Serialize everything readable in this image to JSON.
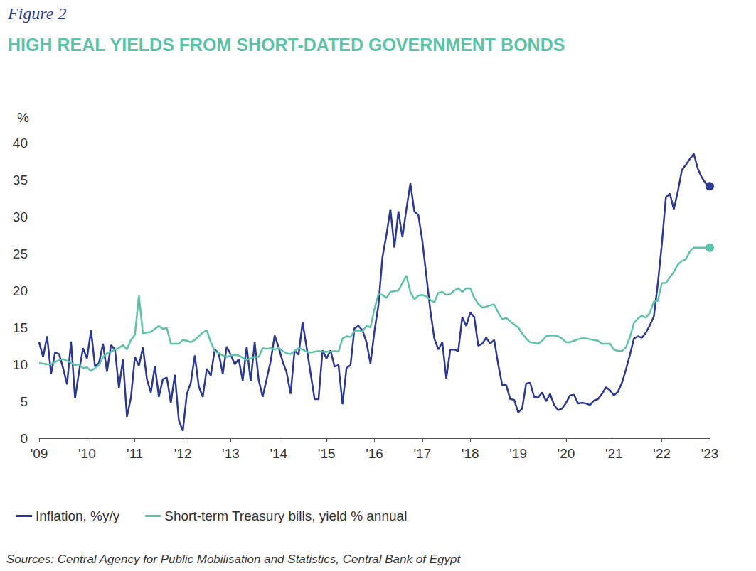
{
  "chart_data": {
    "type": "line",
    "caption": "Figure 2",
    "title": "HIGH REAL YIELDS FROM SHORT-DATED GOVERNMENT BONDS",
    "y_label": "%",
    "source": "Sources: Central Agency for Public Mobilisation and Statistics, Central Bank of Egypt",
    "categories": [
      "'09",
      null,
      null,
      null,
      null,
      null,
      null,
      null,
      null,
      null,
      null,
      null,
      "'10",
      null,
      null,
      null,
      null,
      null,
      null,
      null,
      null,
      null,
      null,
      null,
      "'11",
      null,
      null,
      null,
      null,
      null,
      null,
      null,
      null,
      null,
      null,
      null,
      "'12",
      null,
      null,
      null,
      null,
      null,
      null,
      null,
      null,
      null,
      null,
      null,
      "'13",
      null,
      null,
      null,
      null,
      null,
      null,
      null,
      null,
      null,
      null,
      null,
      "'14",
      null,
      null,
      null,
      null,
      null,
      null,
      null,
      null,
      null,
      null,
      null,
      "'15",
      null,
      null,
      null,
      null,
      null,
      null,
      null,
      null,
      null,
      null,
      null,
      "'16",
      null,
      null,
      null,
      null,
      null,
      null,
      null,
      null,
      null,
      null,
      null,
      "'17",
      null,
      null,
      null,
      null,
      null,
      null,
      null,
      null,
      null,
      null,
      null,
      "'18",
      null,
      null,
      null,
      null,
      null,
      null,
      null,
      null,
      null,
      null,
      null,
      "'19",
      null,
      null,
      null,
      null,
      null,
      null,
      null,
      null,
      null,
      null,
      null,
      "'20",
      null,
      null,
      null,
      null,
      null,
      null,
      null,
      null,
      null,
      null,
      null,
      "'21",
      null,
      null,
      null,
      null,
      null,
      null,
      null,
      null,
      null,
      null,
      null,
      "'22",
      null,
      null,
      null,
      null,
      null,
      null,
      null,
      null,
      null,
      null,
      null,
      "'23"
    ],
    "series": [
      {
        "name": "Inflation, %y/y",
        "color": "#2b3990",
        "values": [
          13.0,
          11.0,
          13.8,
          8.7,
          11.6,
          11.4,
          9.5,
          7.3,
          13.1,
          5.4,
          9.0,
          12.2,
          10.8,
          14.6,
          9.7,
          10.2,
          12.8,
          9.0,
          12.6,
          12.0,
          6.8,
          10.7,
          2.9,
          5.5,
          11.0,
          9.8,
          12.3,
          8.0,
          6.2,
          9.8,
          5.6,
          8.0,
          8.2,
          4.8,
          8.6,
          2.4,
          1.0,
          6.0,
          7.5,
          11.2,
          7.0,
          5.6,
          9.4,
          8.5,
          12.0,
          11.5,
          8.7,
          12.4,
          11.3,
          10.0,
          10.7,
          7.8,
          12.4,
          7.7,
          13.0,
          7.9,
          5.6,
          8.0,
          10.4,
          13.9,
          12.3,
          10.4,
          8.9,
          6.0,
          11.9,
          11.3,
          15.7,
          12.3,
          8.8,
          5.3,
          5.3,
          11.9,
          10.8,
          11.9,
          9.7,
          9.9,
          4.6,
          9.5,
          9.9,
          14.9,
          15.2,
          14.6,
          13.0,
          10.1,
          14.5,
          18.0,
          24.5,
          27.5,
          31.0,
          25.8,
          30.7,
          27.2,
          31.0,
          34.5,
          30.7,
          30.2,
          26.7,
          22.0,
          17.3,
          13.5,
          12.0,
          13.0,
          8.1,
          12.0,
          12.0,
          11.8,
          16.4,
          15.2,
          17.0,
          16.4,
          12.5,
          12.8,
          13.6,
          12.8,
          13.3,
          10.0,
          7.2,
          7.2,
          5.3,
          5.2,
          3.5,
          4.0,
          7.4,
          7.5,
          5.6,
          5.5,
          6.2,
          5.0,
          6.0,
          4.5,
          3.8,
          4.0,
          4.8,
          5.8,
          5.9,
          4.7,
          4.8,
          4.7,
          4.5,
          5.1,
          5.3,
          6.0,
          6.9,
          6.5,
          5.8,
          6.3,
          7.5,
          9.3,
          11.3,
          13.5,
          13.8,
          13.6,
          14.3,
          15.3,
          16.5,
          21.0,
          26.3,
          32.6,
          33.1,
          31.0,
          33.4,
          36.3,
          37.0,
          37.8,
          38.5,
          36.5,
          35.3,
          34.5,
          34.1
        ]
      },
      {
        "name": "Short-term Treasury bills, yield % annual",
        "color": "#5cc3a8",
        "values": [
          10.2,
          10.1,
          10.0,
          10.0,
          10.3,
          10.6,
          10.7,
          10.5,
          10.2,
          9.9,
          10.0,
          9.5,
          9.6,
          9.1,
          9.5,
          9.9,
          11.0,
          11.5,
          11.7,
          12.0,
          12.2,
          12.6,
          12.0,
          13.3,
          14.0,
          19.3,
          14.2,
          14.3,
          14.4,
          14.8,
          15.2,
          14.8,
          14.9,
          12.8,
          12.8,
          12.8,
          13.3,
          13.2,
          13.0,
          13.3,
          13.8,
          14.3,
          14.6,
          13.0,
          11.8,
          11.5,
          11.2,
          11.0,
          11.2,
          11.3,
          11.2,
          10.9,
          10.6,
          10.8,
          11.0,
          11.0,
          12.2,
          12.1,
          12.2,
          12.0,
          12.2,
          11.8,
          11.5,
          11.4,
          11.8,
          12.2,
          12.0,
          11.7,
          11.6,
          11.7,
          11.8,
          11.7,
          11.7,
          11.7,
          11.8,
          11.7,
          13.5,
          13.8,
          13.7,
          14.5,
          14.6,
          14.5,
          15.2,
          15.0,
          17.5,
          19.5,
          19.4,
          19.0,
          19.8,
          19.9,
          20.0,
          21.0,
          22.0,
          19.8,
          18.8,
          19.3,
          19.4,
          19.2,
          18.7,
          18.4,
          19.7,
          19.8,
          19.4,
          19.5,
          20.0,
          20.3,
          19.8,
          20.3,
          20.3,
          19.0,
          18.2,
          17.7,
          17.8,
          18.0,
          18.1,
          17.0,
          16.1,
          16.3,
          15.8,
          15.4,
          15.0,
          14.2,
          13.5,
          13.0,
          12.9,
          12.8,
          13.2,
          13.8,
          13.9,
          13.9,
          13.8,
          13.5,
          13.0,
          13.0,
          13.2,
          13.4,
          13.5,
          13.5,
          13.4,
          13.3,
          13.2,
          12.8,
          12.8,
          12.8,
          12.0,
          11.8,
          11.8,
          12.3,
          13.7,
          15.6,
          16.2,
          16.6,
          16.3,
          17.0,
          18.5,
          18.6,
          21.0,
          21.0,
          21.8,
          22.5,
          23.5,
          24.0,
          24.2,
          25.3,
          25.8,
          25.8,
          25.8,
          25.8,
          25.8
        ]
      }
    ],
    "ylim": [
      0,
      40
    ],
    "yticks": [
      0,
      5,
      10,
      15,
      20,
      25,
      30,
      35,
      40
    ],
    "grid": false,
    "legend": "bottom-left"
  }
}
